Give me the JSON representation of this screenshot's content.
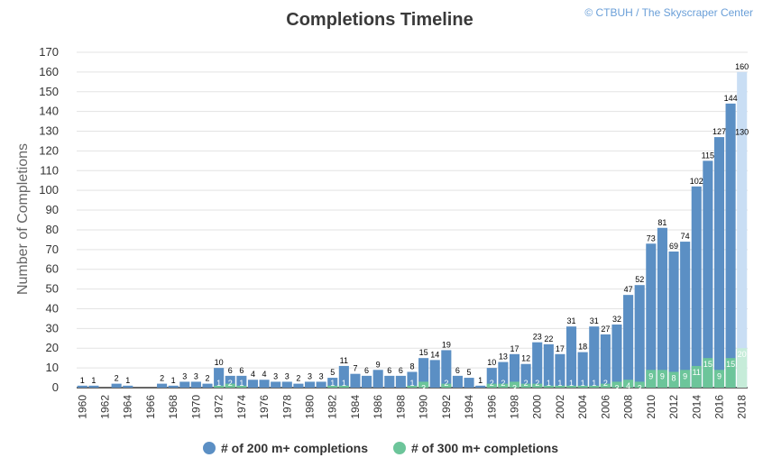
{
  "chart_data": {
    "type": "bar",
    "title": "Completions Timeline",
    "credit": "© CTBUH / The Skyscraper Center",
    "ylabel": "Number of Completions",
    "xlabel": "",
    "ylim": [
      0,
      170
    ],
    "yticks": [
      0,
      10,
      20,
      30,
      40,
      50,
      60,
      70,
      80,
      90,
      100,
      110,
      120,
      130,
      140,
      150,
      160,
      170
    ],
    "grid": true,
    "legend_position": "bottom",
    "categories": [
      "1960",
      "1961",
      "1962",
      "1963",
      "1964",
      "1965",
      "1966",
      "1967",
      "1968",
      "1969",
      "1970",
      "1971",
      "1972",
      "1973",
      "1974",
      "1975",
      "1976",
      "1977",
      "1978",
      "1979",
      "1980",
      "1981",
      "1982",
      "1983",
      "1984",
      "1985",
      "1986",
      "1987",
      "1988",
      "1989",
      "1990",
      "1991",
      "1992",
      "1993",
      "1994",
      "1995",
      "1996",
      "1997",
      "1998",
      "1999",
      "2000",
      "2001",
      "2002",
      "2003",
      "2004",
      "2005",
      "2006",
      "2007",
      "2008",
      "2009",
      "2010",
      "2011",
      "2012",
      "2013",
      "2014",
      "2015",
      "2016",
      "2017",
      "2018"
    ],
    "xtick_labels": [
      "1960",
      "1962",
      "1964",
      "1966",
      "1968",
      "1970",
      "1972",
      "1974",
      "1976",
      "1978",
      "1980",
      "1982",
      "1984",
      "1986",
      "1988",
      "1990",
      "1992",
      "1994",
      "1996",
      "1998",
      "2000",
      "2002",
      "2004",
      "2006",
      "2008",
      "2010",
      "2012",
      "2014",
      "2016",
      "2018"
    ],
    "series": [
      {
        "name": "# of 200 m+ completions",
        "color": "#5b8fc4",
        "values": [
          1,
          1,
          0,
          2,
          1,
          0,
          0,
          2,
          1,
          3,
          3,
          2,
          10,
          6,
          6,
          4,
          4,
          3,
          3,
          2,
          3,
          3,
          5,
          11,
          7,
          6,
          9,
          6,
          6,
          8,
          15,
          14,
          19,
          6,
          5,
          1,
          10,
          13,
          17,
          12,
          23,
          22,
          17,
          31,
          18,
          31,
          27,
          32,
          47,
          52,
          73,
          81,
          69,
          74,
          102,
          115,
          127,
          144,
          160
        ]
      },
      {
        "name": "# of 300 m+ completions",
        "color": "#6cc59a",
        "values": [
          0,
          0,
          0,
          0,
          0,
          0,
          0,
          0,
          0,
          0,
          0,
          0,
          1,
          2,
          1,
          0,
          0,
          0,
          0,
          0,
          0,
          0,
          1,
          1,
          0,
          0,
          0,
          0,
          0,
          1,
          3,
          0,
          2,
          0,
          0,
          0,
          2,
          2,
          3,
          2,
          2,
          1,
          1,
          1,
          1,
          1,
          2,
          3,
          4,
          3,
          9,
          9,
          8,
          9,
          11,
          15,
          9,
          15,
          20
        ]
      }
    ],
    "total_labels": [
      "1",
      "1",
      "",
      "2",
      "1",
      "",
      "",
      "2",
      "1",
      "3",
      "3",
      "2",
      "10",
      "6",
      "6",
      "4",
      "4",
      "3",
      "3",
      "2",
      "3",
      "3",
      "5",
      "11",
      "7",
      "6",
      "9",
      "6",
      "6",
      "8",
      "15",
      "14",
      "19",
      "6",
      "5",
      "1",
      "10",
      "13",
      "17",
      "12",
      "23",
      "22",
      "17",
      "31",
      "18",
      "31",
      "27",
      "32",
      "47",
      "52",
      "73",
      "81",
      "69",
      "74",
      "102",
      "115",
      "127",
      "144",
      "160"
    ],
    "inner_labels": [
      "",
      "",
      "",
      "",
      "",
      "",
      "",
      "",
      "",
      "",
      "",
      "",
      "1",
      "2",
      "1",
      "",
      "",
      "",
      "",
      "",
      "",
      "",
      "1",
      "1",
      "",
      "",
      "",
      "",
      "",
      "1",
      "3",
      "",
      "2",
      "",
      "",
      "",
      "2",
      "2",
      "3",
      "2",
      "2",
      "1",
      "1",
      "1",
      "1",
      "1",
      "2",
      "3",
      "4",
      "3",
      "9",
      "9",
      "8",
      "9",
      "11",
      "15",
      "9",
      "15",
      "20"
    ],
    "annotations": [
      {
        "category": "2018",
        "label": "130"
      }
    ]
  }
}
